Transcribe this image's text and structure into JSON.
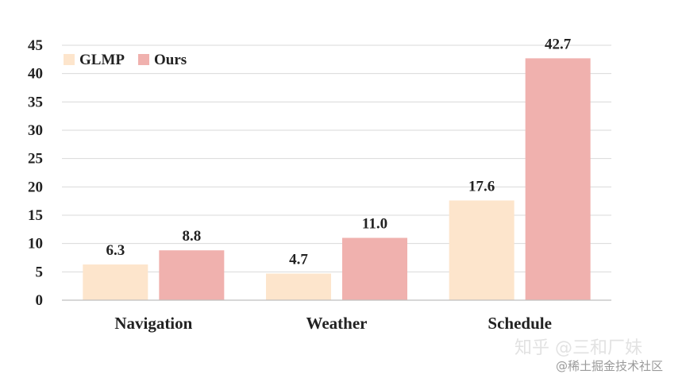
{
  "chart_data": {
    "type": "bar",
    "categories": [
      "Navigation",
      "Weather",
      "Schedule"
    ],
    "series": [
      {
        "name": "GLMP",
        "values": [
          6.3,
          4.7,
          17.6
        ],
        "color": "#fde5cc",
        "labels": [
          "6.3",
          "4.7",
          "17.6"
        ]
      },
      {
        "name": "Ours",
        "values": [
          8.8,
          11.0,
          42.7
        ],
        "color": "#f0b1ae",
        "labels": [
          "8.8",
          "11.0",
          "42.7"
        ]
      }
    ],
    "yticks": [
      "0",
      "5",
      "10",
      "15",
      "20",
      "25",
      "30",
      "35",
      "40",
      "45"
    ],
    "ylim": [
      0,
      45
    ],
    "grid": true,
    "legend_position": "top-left",
    "title": "",
    "xlabel": "",
    "ylabel": ""
  },
  "watermark": {
    "line1": "知乎 @三和厂妹",
    "line2": "@稀土掘金技术社区"
  }
}
